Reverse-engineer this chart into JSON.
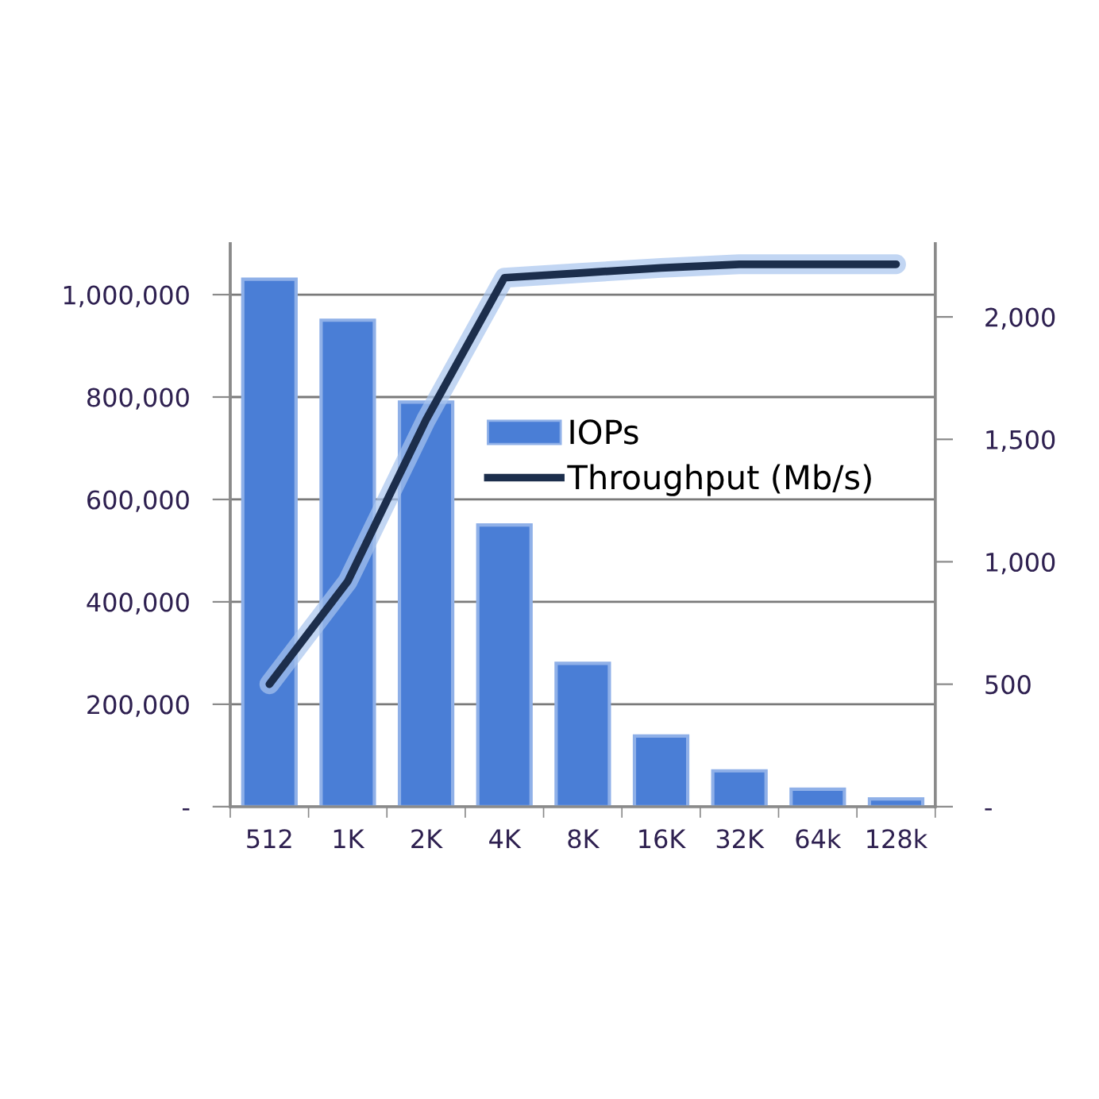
{
  "chart_data": {
    "type": "bar",
    "categories": [
      "512",
      "1K",
      "2K",
      "4K",
      "8K",
      "16K",
      "32K",
      "64k",
      "128k"
    ],
    "series": [
      {
        "name": "IOPs",
        "color": "#4a7ed6",
        "values": [
          1030000,
          950000,
          790000,
          550000,
          280000,
          138000,
          70000,
          34000,
          15000
        ]
      },
      {
        "name": "Throughput (Mb/s)",
        "type": "line",
        "axis": "y2",
        "color": "#1c2e4c",
        "values": [
          500,
          920,
          1580,
          2160,
          2180,
          2200,
          2215,
          2215,
          2215
        ]
      }
    ],
    "ylim": [
      0,
      1100000
    ],
    "yticks": [
      {
        "value": 0,
        "label": "-"
      },
      {
        "value": 200000,
        "label": "200,000"
      },
      {
        "value": 400000,
        "label": "400,000"
      },
      {
        "value": 600000,
        "label": "600,000"
      },
      {
        "value": 800000,
        "label": "800,000"
      },
      {
        "value": 1000000,
        "label": "1,000,000"
      }
    ],
    "y2lim": [
      0,
      2300
    ],
    "y2ticks": [
      {
        "value": 0,
        "label": "-"
      },
      500,
      {
        "value": 1000,
        "label": "1,000"
      },
      {
        "value": 1500,
        "label": "1,500"
      },
      {
        "value": 2000,
        "label": "2,000"
      }
    ],
    "grid": "y",
    "legend": "center right",
    "marker": "none",
    "line_style": "solid"
  }
}
